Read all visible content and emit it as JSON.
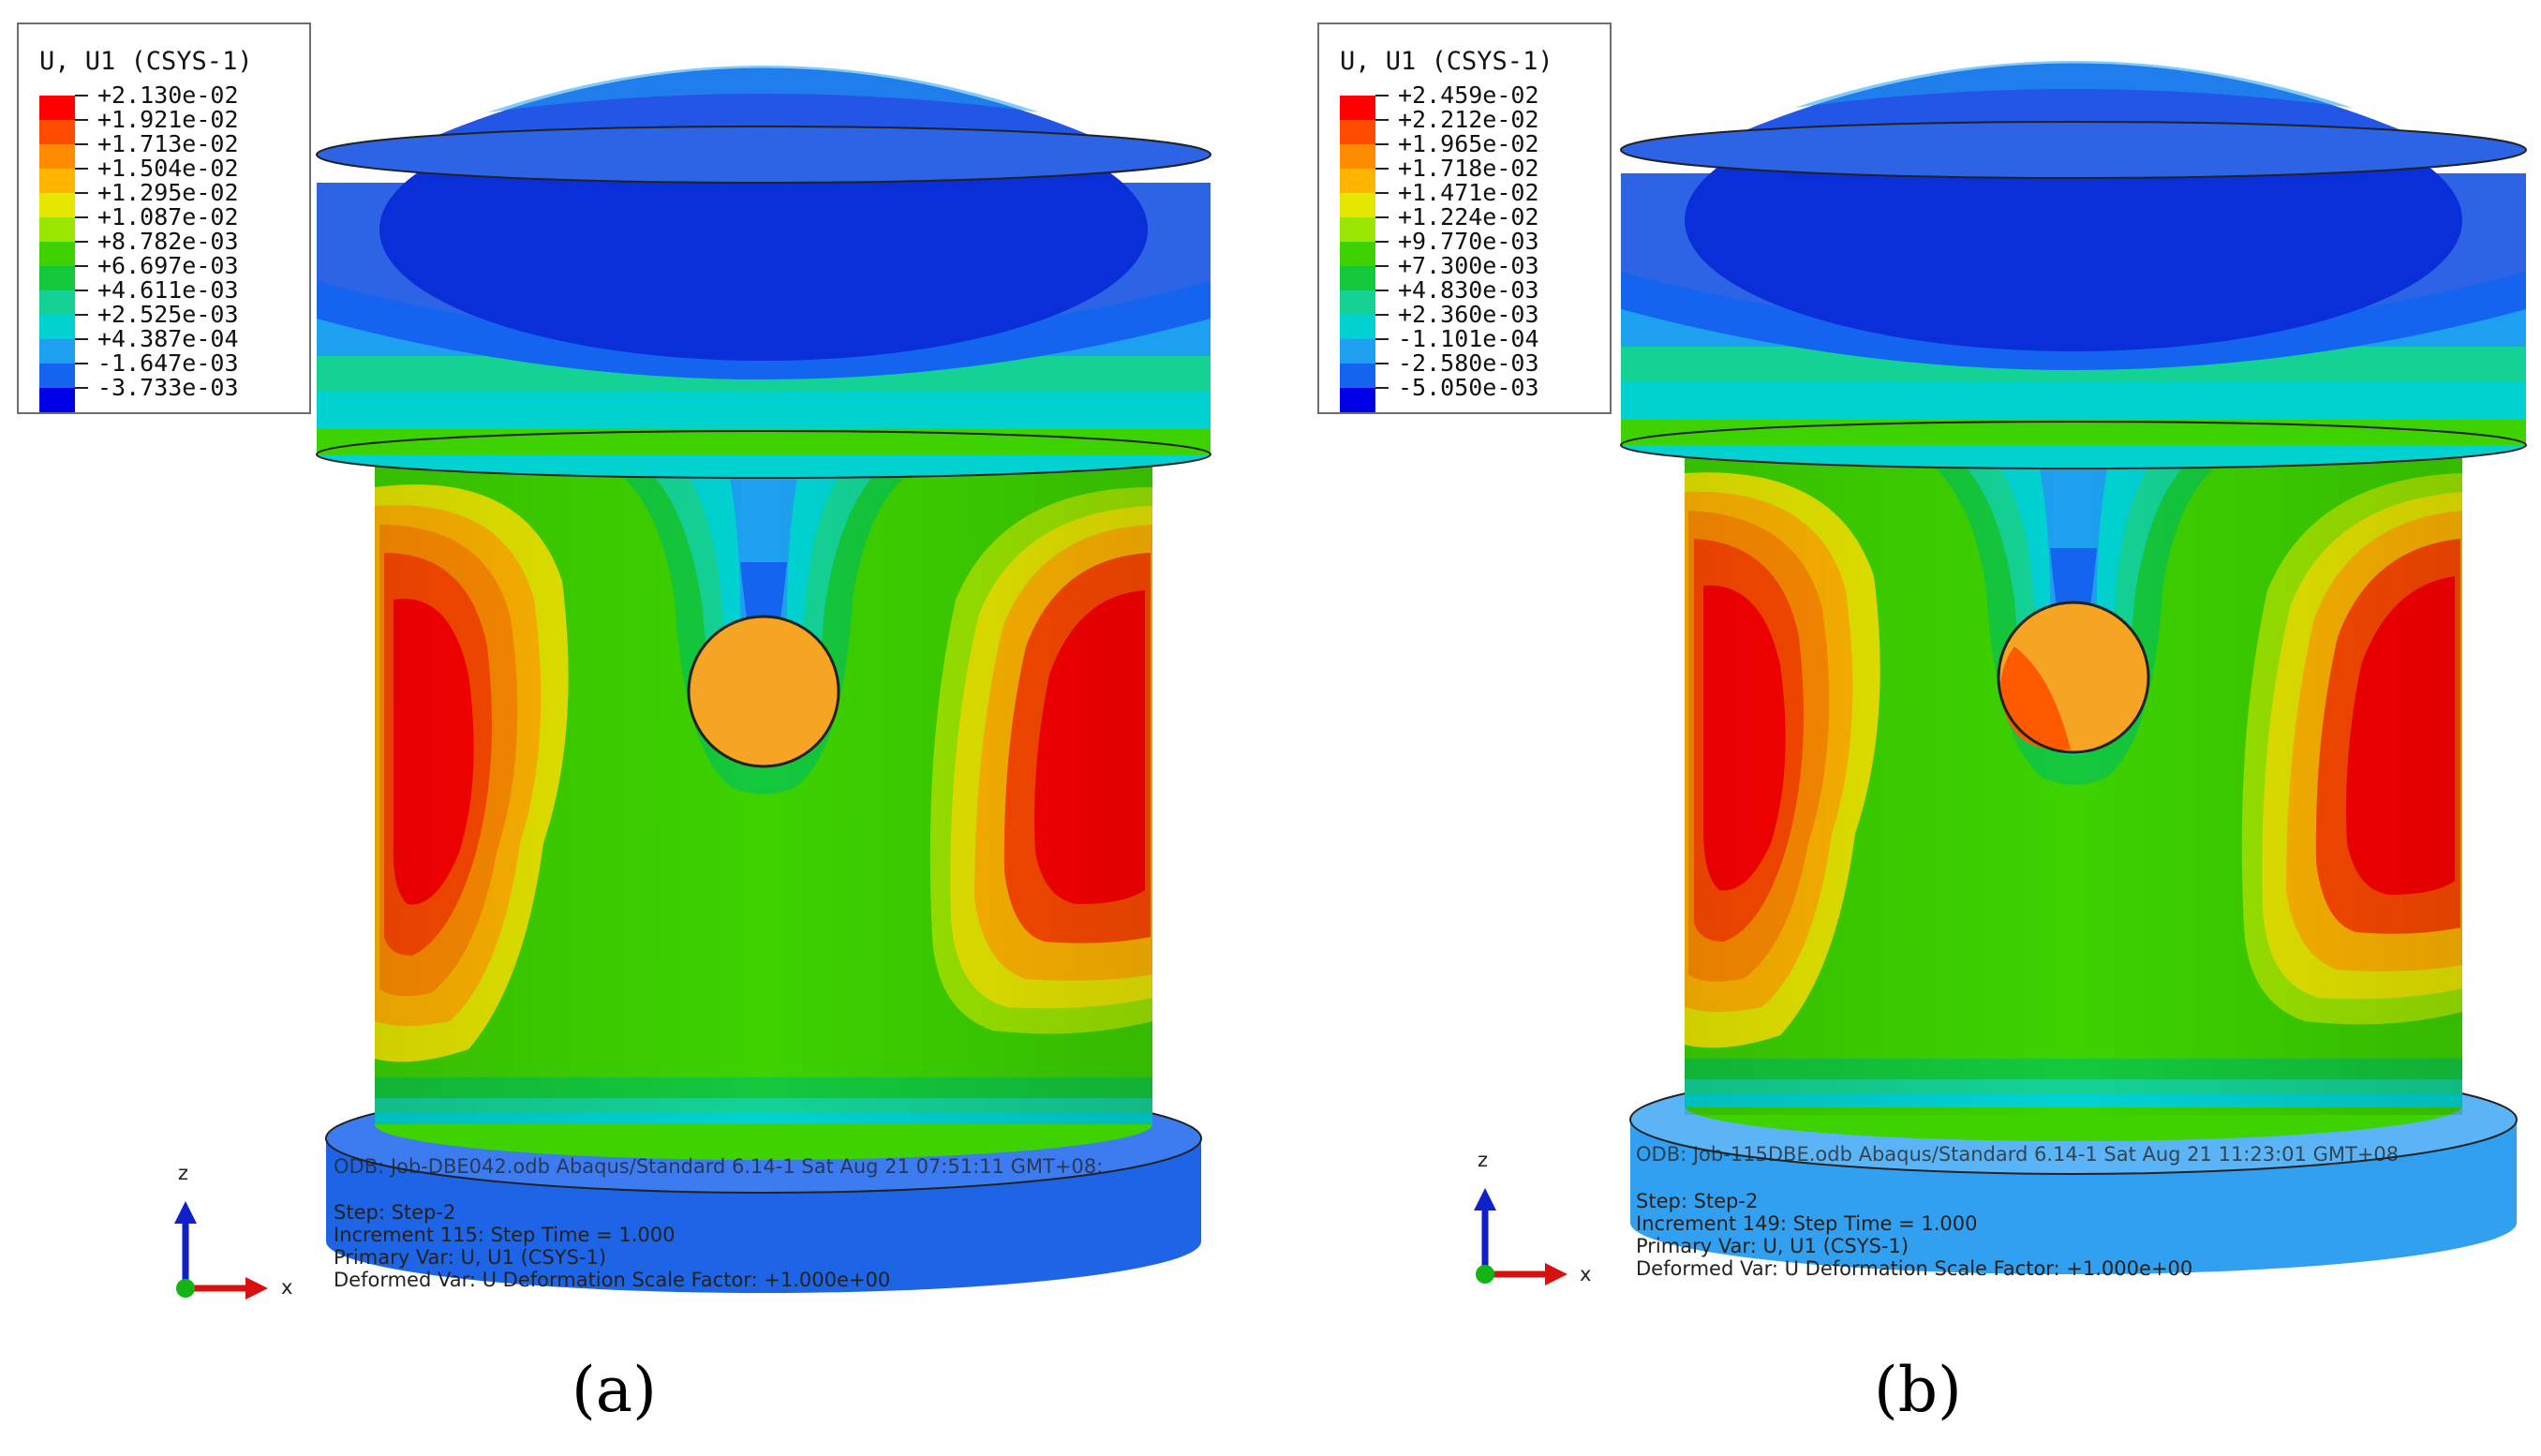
{
  "panels": [
    {
      "label": "(a)",
      "legend_title": "U, U1 (CSYS-1)",
      "legend_values": [
        "+2.130e-02",
        "+1.921e-02",
        "+1.713e-02",
        "+1.504e-02",
        "+1.295e-02",
        "+1.087e-02",
        "+8.782e-03",
        "+6.697e-03",
        "+4.611e-03",
        "+2.525e-03",
        "+4.387e-04",
        "-1.647e-03",
        "-3.733e-03"
      ],
      "odb": "ODB: Job-DBE042.odb    Abaqus/Standard 6.14-1    Sat Aug 21 07:51:11 GMT+08:",
      "step": "Step: Step-2",
      "increment": "Increment    115: Step Time =    1.000",
      "primary_var": "Primary Var: U, U1 (CSYS-1)",
      "deformed_var": "Deformed Var: U   Deformation Scale Factor: +1.000e+00",
      "triad": {
        "z": "z",
        "x": "x"
      }
    },
    {
      "label": "(b)",
      "legend_title": "U, U1 (CSYS-1)",
      "legend_values": [
        "+2.459e-02",
        "+2.212e-02",
        "+1.965e-02",
        "+1.718e-02",
        "+1.471e-02",
        "+1.224e-02",
        "+9.770e-03",
        "+7.300e-03",
        "+4.830e-03",
        "+2.360e-03",
        "-1.101e-04",
        "-2.580e-03",
        "-5.050e-03"
      ],
      "odb": "ODB: Job-115DBE.odb    Abaqus/Standard 6.14-1    Sat Aug 21 11:23:01 GMT+08",
      "step": "Step: Step-2",
      "increment": "Increment    149: Step Time =    1.000",
      "primary_var": "Primary Var: U, U1 (CSYS-1)",
      "deformed_var": "Deformed Var: U   Deformation Scale Factor: +1.000e+00",
      "triad": {
        "z": "z",
        "x": "x"
      }
    }
  ],
  "colormap": [
    "#ff0000",
    "#ff4a00",
    "#ff8c00",
    "#ffb400",
    "#e6e600",
    "#9be600",
    "#3dd200",
    "#14c83c",
    "#14d296",
    "#00d2d2",
    "#1ea0f0",
    "#1464f0",
    "#0000e6"
  ],
  "colors": {
    "dome": "#2355e6",
    "cap": "#2d64e6",
    "cap_dark": "#0a2fd8",
    "body": "#3dd200",
    "base_a": "#1e64e6",
    "base_b": "#32a0f0",
    "pin_a": "#f5a523",
    "pin_b_light": "#f5a523",
    "pin_b_dark": "#ff5a00"
  }
}
